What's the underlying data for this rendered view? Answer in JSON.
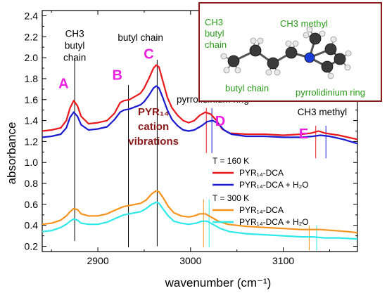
{
  "chart_data": {
    "type": "line",
    "xlabel": "wavenumber (cm⁻¹)",
    "ylabel": "absorbance",
    "xlim": [
      2840,
      3180
    ],
    "ylim": [
      0.15,
      2.45
    ],
    "x_ticks": [
      2900,
      3000,
      3100
    ],
    "y_ticks": [
      0.2,
      0.4,
      0.6,
      0.8,
      1.0,
      1.2,
      1.4,
      1.6,
      1.8,
      2.0,
      2.2,
      2.4
    ],
    "series": [
      {
        "name": "PYR₁₄-DCA",
        "group": "T = 160 K",
        "color": "#e8191c",
        "points": [
          [
            2840,
            1.3
          ],
          [
            2850,
            1.31
          ],
          [
            2860,
            1.33
          ],
          [
            2866,
            1.4
          ],
          [
            2870,
            1.52
          ],
          [
            2874,
            1.59
          ],
          [
            2878,
            1.54
          ],
          [
            2882,
            1.44
          ],
          [
            2890,
            1.37
          ],
          [
            2900,
            1.38
          ],
          [
            2910,
            1.4
          ],
          [
            2918,
            1.47
          ],
          [
            2924,
            1.57
          ],
          [
            2928,
            1.59
          ],
          [
            2934,
            1.6
          ],
          [
            2940,
            1.63
          ],
          [
            2946,
            1.66
          ],
          [
            2950,
            1.71
          ],
          [
            2955,
            1.8
          ],
          [
            2960,
            1.9
          ],
          [
            2963,
            1.93
          ],
          [
            2966,
            1.91
          ],
          [
            2970,
            1.78
          ],
          [
            2975,
            1.62
          ],
          [
            2980,
            1.52
          ],
          [
            2986,
            1.45
          ],
          [
            2992,
            1.4
          ],
          [
            2998,
            1.38
          ],
          [
            3004,
            1.4
          ],
          [
            3010,
            1.45
          ],
          [
            3016,
            1.48
          ],
          [
            3022,
            1.46
          ],
          [
            3028,
            1.4
          ],
          [
            3034,
            1.32
          ],
          [
            3042,
            1.28
          ],
          [
            3060,
            1.27
          ],
          [
            3080,
            1.27
          ],
          [
            3100,
            1.26
          ],
          [
            3120,
            1.27
          ],
          [
            3130,
            1.28
          ],
          [
            3138,
            1.3
          ],
          [
            3145,
            1.28
          ],
          [
            3160,
            1.26
          ],
          [
            3180,
            1.22
          ]
        ]
      },
      {
        "name": "PYR₁₄-DCA + H₂O",
        "group": "T = 160 K",
        "color": "#1a1ad1",
        "points": [
          [
            2840,
            1.24
          ],
          [
            2850,
            1.25
          ],
          [
            2860,
            1.27
          ],
          [
            2866,
            1.33
          ],
          [
            2870,
            1.43
          ],
          [
            2874,
            1.48
          ],
          [
            2878,
            1.44
          ],
          [
            2882,
            1.36
          ],
          [
            2890,
            1.31
          ],
          [
            2900,
            1.32
          ],
          [
            2910,
            1.34
          ],
          [
            2918,
            1.41
          ],
          [
            2924,
            1.48
          ],
          [
            2928,
            1.5
          ],
          [
            2934,
            1.51
          ],
          [
            2940,
            1.53
          ],
          [
            2946,
            1.55
          ],
          [
            2950,
            1.58
          ],
          [
            2955,
            1.64
          ],
          [
            2960,
            1.71
          ],
          [
            2963,
            1.73
          ],
          [
            2966,
            1.71
          ],
          [
            2970,
            1.62
          ],
          [
            2975,
            1.5
          ],
          [
            2980,
            1.41
          ],
          [
            2986,
            1.35
          ],
          [
            2992,
            1.31
          ],
          [
            2998,
            1.3
          ],
          [
            3004,
            1.31
          ],
          [
            3012,
            1.35
          ],
          [
            3018,
            1.39
          ],
          [
            3024,
            1.4
          ],
          [
            3030,
            1.37
          ],
          [
            3036,
            1.31
          ],
          [
            3044,
            1.27
          ],
          [
            3060,
            1.25
          ],
          [
            3080,
            1.25
          ],
          [
            3100,
            1.24
          ],
          [
            3120,
            1.24
          ],
          [
            3132,
            1.25
          ],
          [
            3140,
            1.26
          ],
          [
            3150,
            1.25
          ],
          [
            3165,
            1.22
          ],
          [
            3180,
            1.18
          ]
        ]
      },
      {
        "name": "PYR₁₄-DCA",
        "group": "T = 300 K",
        "color": "#f7931d",
        "points": [
          [
            2840,
            0.41
          ],
          [
            2850,
            0.42
          ],
          [
            2860,
            0.45
          ],
          [
            2866,
            0.49
          ],
          [
            2870,
            0.53
          ],
          [
            2874,
            0.56
          ],
          [
            2878,
            0.55
          ],
          [
            2882,
            0.51
          ],
          [
            2890,
            0.49
          ],
          [
            2900,
            0.49
          ],
          [
            2910,
            0.51
          ],
          [
            2920,
            0.55
          ],
          [
            2928,
            0.58
          ],
          [
            2934,
            0.59
          ],
          [
            2940,
            0.6
          ],
          [
            2946,
            0.61
          ],
          [
            2952,
            0.64
          ],
          [
            2958,
            0.7
          ],
          [
            2963,
            0.73
          ],
          [
            2966,
            0.72
          ],
          [
            2970,
            0.67
          ],
          [
            2976,
            0.58
          ],
          [
            2982,
            0.52
          ],
          [
            2990,
            0.49
          ],
          [
            2998,
            0.48
          ],
          [
            3004,
            0.49
          ],
          [
            3010,
            0.51
          ],
          [
            3016,
            0.51
          ],
          [
            3022,
            0.48
          ],
          [
            3030,
            0.44
          ],
          [
            3040,
            0.41
          ],
          [
            3060,
            0.39
          ],
          [
            3080,
            0.38
          ],
          [
            3100,
            0.37
          ],
          [
            3120,
            0.36
          ],
          [
            3130,
            0.36
          ],
          [
            3140,
            0.36
          ],
          [
            3155,
            0.35
          ],
          [
            3170,
            0.34
          ],
          [
            3180,
            0.33
          ]
        ]
      },
      {
        "name": "PYR₁₄-DCA + H₂O",
        "group": "T = 300 K",
        "color": "#2ee8ea",
        "points": [
          [
            2840,
            0.34
          ],
          [
            2850,
            0.35
          ],
          [
            2860,
            0.38
          ],
          [
            2866,
            0.41
          ],
          [
            2870,
            0.44
          ],
          [
            2874,
            0.46
          ],
          [
            2878,
            0.45
          ],
          [
            2882,
            0.42
          ],
          [
            2890,
            0.41
          ],
          [
            2900,
            0.41
          ],
          [
            2910,
            0.43
          ],
          [
            2920,
            0.47
          ],
          [
            2928,
            0.5
          ],
          [
            2934,
            0.51
          ],
          [
            2940,
            0.52
          ],
          [
            2946,
            0.53
          ],
          [
            2952,
            0.56
          ],
          [
            2958,
            0.6
          ],
          [
            2963,
            0.62
          ],
          [
            2966,
            0.61
          ],
          [
            2970,
            0.56
          ],
          [
            2976,
            0.49
          ],
          [
            2982,
            0.44
          ],
          [
            2990,
            0.42
          ],
          [
            2998,
            0.41
          ],
          [
            3006,
            0.42
          ],
          [
            3012,
            0.44
          ],
          [
            3018,
            0.44
          ],
          [
            3024,
            0.41
          ],
          [
            3032,
            0.37
          ],
          [
            3042,
            0.34
          ],
          [
            3060,
            0.32
          ],
          [
            3080,
            0.31
          ],
          [
            3100,
            0.3
          ],
          [
            3120,
            0.29
          ],
          [
            3132,
            0.29
          ],
          [
            3145,
            0.28
          ],
          [
            3160,
            0.28
          ],
          [
            3180,
            0.27
          ]
        ]
      }
    ],
    "vertical_markers": [
      {
        "x": 2875,
        "y_top": 2.0,
        "y_bottom": 0.25,
        "color": "#000000"
      },
      {
        "x": 2933,
        "y_top": 1.74,
        "y_bottom": 0.19,
        "color": "#000000"
      },
      {
        "x": 2964,
        "y_top": 1.98,
        "y_bottom": 0.2,
        "color": "#000000"
      },
      {
        "x": 3017,
        "y_top": 1.52,
        "y_bottom": 1.09,
        "color": "#e8191c"
      },
      {
        "x": 3023,
        "y_top": 1.52,
        "y_bottom": 1.09,
        "color": "#1a1ad1"
      },
      {
        "x": 3014,
        "y_top": 0.65,
        "y_bottom": 0.19,
        "color": "#f7931d"
      },
      {
        "x": 3020,
        "y_top": 0.65,
        "y_bottom": 0.19,
        "color": "#2ee8ea"
      },
      {
        "x": 3135,
        "y_top": 1.35,
        "y_bottom": 1.04,
        "color": "#e8191c"
      },
      {
        "x": 3146,
        "y_top": 1.35,
        "y_bottom": 1.04,
        "color": "#1a1ad1"
      },
      {
        "x": 3128,
        "y_top": 0.4,
        "y_bottom": 0.16,
        "color": "#f7931d"
      },
      {
        "x": 3136,
        "y_top": 0.4,
        "y_bottom": 0.16,
        "color": "#2ee8ea"
      }
    ],
    "peak_letters": [
      {
        "text": "A",
        "x": 2863,
        "y": 1.71
      },
      {
        "text": "B",
        "x": 2921,
        "y": 1.79
      },
      {
        "text": "C",
        "x": 2955,
        "y": 1.99
      },
      {
        "text": "D",
        "x": 3032,
        "y": 1.35
      },
      {
        "text": "E",
        "x": 3122,
        "y": 1.23
      }
    ],
    "annotations": [
      {
        "lines": [
          "CH3",
          "butyl",
          "chain"
        ],
        "x": 2875,
        "y": 2.2,
        "anchor": "middle"
      },
      {
        "lines": [
          "butyl chain"
        ],
        "x": 2946,
        "y": 2.16,
        "anchor": "middle"
      },
      {
        "lines": [
          "pyrrolidinium ring"
        ],
        "x": 3024,
        "y": 1.57,
        "anchor": "middle"
      },
      {
        "lines": [
          "CH3 methyl"
        ],
        "x": 3142,
        "y": 1.45,
        "anchor": "middle"
      }
    ],
    "bold_note": {
      "lines": [
        "PYR₁₄",
        "cation",
        "vibrations"
      ],
      "x": 2960,
      "y": 1.45,
      "color": "#8b1a1a"
    },
    "legend": {
      "position": "right-middle",
      "groups": [
        {
          "title": "T = 160 K",
          "entries": [
            0,
            1
          ]
        },
        {
          "title": "T = 300 K",
          "entries": [
            2,
            3
          ]
        }
      ]
    },
    "inset": {
      "position": "top-right",
      "border_color": "#8b1a1a",
      "label_color": "#2a9a1a",
      "labels": [
        {
          "lines": [
            "CH3",
            "butyl",
            "chain"
          ],
          "pos": "left"
        },
        {
          "lines": [
            "CH3 methyl"
          ],
          "pos": "top"
        },
        {
          "lines": [
            "butyl chain"
          ],
          "pos": "bottom-left"
        },
        {
          "lines": [
            "pyrrolidinium ring"
          ],
          "pos": "bottom-right"
        }
      ]
    }
  }
}
